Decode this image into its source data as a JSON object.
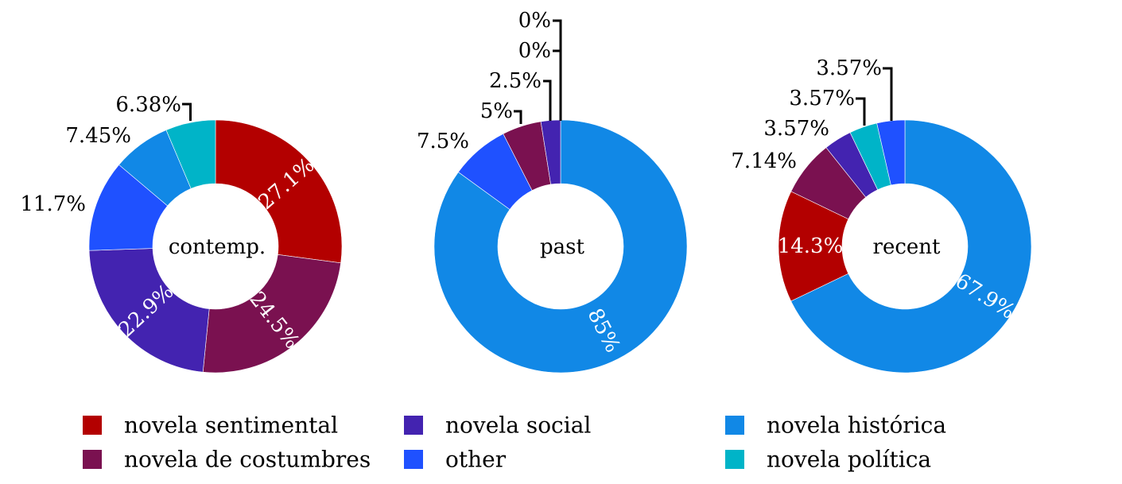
{
  "chart_data": [
    {
      "type": "pie",
      "style": "donut",
      "center_label": "contemp.",
      "start": "12 o'clock, clockwise",
      "slices": [
        {
          "category": "novela sentimental",
          "value": 27.1,
          "label": "27.1%",
          "label_placement": "inside"
        },
        {
          "category": "novela de costumbres",
          "value": 24.5,
          "label": "24.5%",
          "label_placement": "inside"
        },
        {
          "category": "novela social",
          "value": 22.9,
          "label": "22.9%",
          "label_placement": "inside"
        },
        {
          "category": "other",
          "value": 11.7,
          "label": "11.7%",
          "label_placement": "outside"
        },
        {
          "category": "novela histórica",
          "value": 7.45,
          "label": "7.45%",
          "label_placement": "outside"
        },
        {
          "category": "novela política",
          "value": 6.38,
          "label": "6.38%",
          "label_placement": "outside-leader"
        }
      ]
    },
    {
      "type": "pie",
      "style": "donut",
      "center_label": "past",
      "start": "12 o'clock, clockwise",
      "slices": [
        {
          "category": "novela histórica",
          "value": 85,
          "label": "85%",
          "label_placement": "inside"
        },
        {
          "category": "other",
          "value": 7.5,
          "label": "7.5%",
          "label_placement": "outside"
        },
        {
          "category": "novela de costumbres",
          "value": 5,
          "label": "5%",
          "label_placement": "outside-leader"
        },
        {
          "category": "novela social",
          "value": 2.5,
          "label": "2.5%",
          "label_placement": "outside-leader"
        },
        {
          "category": "novela sentimental",
          "value": 0,
          "label": "0%",
          "label_placement": "outside-leader"
        },
        {
          "category": "novela política",
          "value": 0,
          "label": "0%",
          "label_placement": "outside-leader"
        }
      ]
    },
    {
      "type": "pie",
      "style": "donut",
      "center_label": "recent",
      "start": "12 o'clock, clockwise",
      "slices": [
        {
          "category": "novela histórica",
          "value": 67.9,
          "label": "67.9%",
          "label_placement": "inside"
        },
        {
          "category": "novela sentimental",
          "value": 14.3,
          "label": "14.3%",
          "label_placement": "inside"
        },
        {
          "category": "novela de costumbres",
          "value": 7.14,
          "label": "7.14%",
          "label_placement": "outside"
        },
        {
          "category": "novela social",
          "value": 3.57,
          "label": "3.57%",
          "label_placement": "outside"
        },
        {
          "category": "novela política",
          "value": 3.57,
          "label": "3.57%",
          "label_placement": "outside-leader"
        },
        {
          "category": "other",
          "value": 3.57,
          "label": "3.57%",
          "label_placement": "outside-leader"
        }
      ]
    }
  ],
  "legend": {
    "placement": "bottom",
    "entries": [
      {
        "name": "novela sentimental",
        "color": "#b30000"
      },
      {
        "name": "novela de costumbres",
        "color": "#7a1150"
      },
      {
        "name": "novela social",
        "color": "#4323b0"
      },
      {
        "name": "other",
        "color": "#1f51ff"
      },
      {
        "name": "novela histórica",
        "color": "#1188e6"
      },
      {
        "name": "novela política",
        "color": "#00b4c8"
      }
    ]
  }
}
